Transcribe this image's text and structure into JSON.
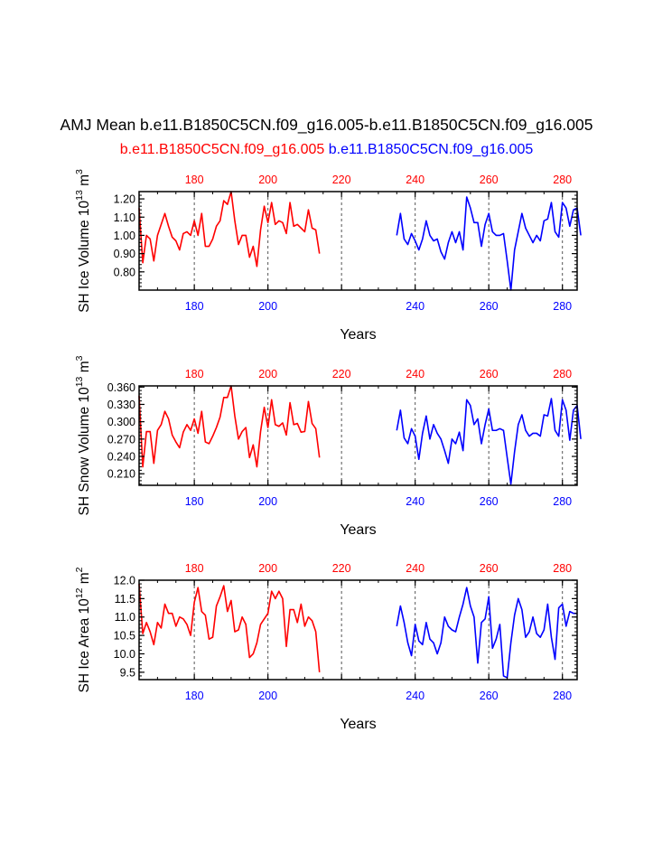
{
  "title": "AMJ Mean b.e11.B1850C5CN.f09_g16.005-b.e11.B1850C5CN.f09_g16.005",
  "case1_label": "b.e11.B1850C5CN.f09_g16.005",
  "case2_label": "b.e11.B1850C5CN.f09_g16.005",
  "colors": {
    "case1": "#ff0000",
    "case2": "#0000ff",
    "axes": "#000000",
    "refline": "#555555"
  },
  "chart_data": [
    {
      "type": "line",
      "ylabel": {
        "base": "SH Ice Volume 10",
        "exp": "13",
        "unit": " m",
        "unit_exp": "3"
      },
      "xlabel": "Years",
      "xlim": [
        165,
        284
      ],
      "ylim": [
        0.7,
        1.24
      ],
      "yticks": [
        0.8,
        0.9,
        1.0,
        1.1,
        1.2
      ],
      "ytick_labels": [
        "0.80",
        "0.90",
        "1.00",
        "1.10",
        "1.20"
      ],
      "xticks": [
        180,
        200,
        220,
        240,
        260,
        280
      ],
      "xtick_labels_bottom": [
        "180",
        "200",
        "240",
        "260",
        "280"
      ],
      "xtick_labels_bottom_values": [
        180,
        200,
        240,
        260,
        280
      ],
      "xtick_labels_top": [
        "180",
        "200",
        "220",
        "240",
        "260",
        "280"
      ],
      "reference_lines_x": [
        180,
        200,
        220,
        240,
        260,
        280
      ],
      "series": [
        {
          "color": "case1",
          "x_start": 165,
          "values": [
            1.15,
            0.85,
            1.0,
            0.98,
            0.86,
            1.0,
            1.06,
            1.12,
            1.05,
            0.99,
            0.97,
            0.92,
            1.01,
            1.02,
            1.0,
            1.08,
            1.0,
            1.12,
            0.94,
            0.94,
            0.98,
            1.05,
            1.08,
            1.19,
            1.17,
            1.24,
            1.08,
            0.95,
            1.0,
            1.0,
            0.88,
            0.94,
            0.83,
            1.03,
            1.16,
            1.07,
            1.18,
            1.06,
            1.08,
            1.07,
            1.01,
            1.18,
            1.05,
            1.06,
            1.04,
            1.02,
            1.14,
            1.04,
            1.03,
            0.9
          ]
        },
        {
          "color": "case2",
          "x_start": 235,
          "values": [
            1.0,
            1.12,
            0.98,
            0.95,
            1.01,
            0.97,
            0.92,
            0.98,
            1.08,
            1.0,
            0.97,
            0.98,
            0.91,
            0.87,
            0.96,
            1.02,
            0.96,
            1.02,
            0.92,
            1.21,
            1.15,
            1.07,
            1.07,
            0.94,
            1.06,
            1.12,
            1.02,
            1.0,
            1.0,
            1.01,
            0.86,
            0.7,
            0.92,
            1.02,
            1.12,
            1.04,
            1.0,
            0.96,
            1.0,
            0.97,
            1.08,
            1.09,
            1.18,
            1.02,
            0.99,
            1.18,
            1.15,
            1.05,
            1.14,
            1.15,
            1.0
          ]
        }
      ]
    },
    {
      "type": "line",
      "ylabel": {
        "base": "SH Snow Volume 10",
        "exp": "13",
        "unit": " m",
        "unit_exp": "3"
      },
      "xlabel": "Years",
      "xlim": [
        165,
        284
      ],
      "ylim": [
        0.19,
        0.362
      ],
      "yticks": [
        0.21,
        0.24,
        0.27,
        0.3,
        0.33,
        0.36
      ],
      "ytick_labels": [
        "0.210",
        "0.240",
        "0.270",
        "0.300",
        "0.330",
        "0.360"
      ],
      "xticks": [
        180,
        200,
        220,
        240,
        260,
        280
      ],
      "xtick_labels_bottom": [
        "180",
        "200",
        "240",
        "260",
        "280"
      ],
      "xtick_labels_bottom_values": [
        180,
        200,
        240,
        260,
        280
      ],
      "xtick_labels_top": [
        "180",
        "200",
        "220",
        "240",
        "260",
        "280"
      ],
      "reference_lines_x": [
        180,
        200,
        220,
        240,
        260,
        280
      ],
      "series": [
        {
          "color": "case1",
          "x_start": 165,
          "values": [
            0.345,
            0.222,
            0.283,
            0.283,
            0.228,
            0.285,
            0.295,
            0.318,
            0.305,
            0.277,
            0.265,
            0.255,
            0.282,
            0.295,
            0.285,
            0.305,
            0.28,
            0.318,
            0.265,
            0.262,
            0.275,
            0.29,
            0.308,
            0.342,
            0.342,
            0.362,
            0.31,
            0.27,
            0.283,
            0.29,
            0.238,
            0.26,
            0.222,
            0.283,
            0.325,
            0.29,
            0.338,
            0.295,
            0.292,
            0.298,
            0.277,
            0.333,
            0.295,
            0.297,
            0.282,
            0.283,
            0.335,
            0.297,
            0.288,
            0.238
          ]
        },
        {
          "color": "case2",
          "x_start": 235,
          "values": [
            0.285,
            0.32,
            0.272,
            0.262,
            0.288,
            0.275,
            0.235,
            0.28,
            0.31,
            0.27,
            0.295,
            0.28,
            0.27,
            0.25,
            0.228,
            0.27,
            0.262,
            0.282,
            0.25,
            0.338,
            0.328,
            0.295,
            0.305,
            0.262,
            0.295,
            0.322,
            0.285,
            0.285,
            0.288,
            0.285,
            0.238,
            0.192,
            0.248,
            0.295,
            0.312,
            0.285,
            0.275,
            0.28,
            0.28,
            0.275,
            0.312,
            0.31,
            0.34,
            0.285,
            0.275,
            0.338,
            0.32,
            0.268,
            0.32,
            0.328,
            0.27
          ]
        }
      ]
    },
    {
      "type": "line",
      "ylabel": {
        "base": "SH Ice Area 10",
        "exp": "12",
        "unit": " m",
        "unit_exp": "2"
      },
      "xlabel": "Years",
      "xlim": [
        165,
        284
      ],
      "ylim": [
        9.3,
        12.0
      ],
      "yticks": [
        9.5,
        10.0,
        10.5,
        11.0,
        11.5,
        12.0
      ],
      "ytick_labels": [
        "9.5",
        "10.0",
        "10.5",
        "11.0",
        "11.5",
        "12.0"
      ],
      "xticks": [
        180,
        200,
        220,
        240,
        260,
        280
      ],
      "xtick_labels_bottom": [
        "180",
        "200",
        "240",
        "260",
        "280"
      ],
      "xtick_labels_bottom_values": [
        180,
        200,
        240,
        260,
        280
      ],
      "xtick_labels_top": [
        "180",
        "200",
        "220",
        "240",
        "260",
        "280"
      ],
      "reference_lines_x": [
        180,
        200,
        220,
        240,
        260,
        280
      ],
      "series": [
        {
          "color": "case1",
          "x_start": 165,
          "values": [
            11.9,
            10.55,
            10.85,
            10.6,
            10.25,
            10.85,
            10.7,
            11.35,
            11.1,
            11.1,
            10.75,
            11.0,
            10.95,
            10.8,
            10.5,
            11.4,
            11.8,
            11.15,
            11.05,
            10.4,
            10.45,
            11.3,
            11.55,
            11.85,
            11.15,
            11.45,
            10.6,
            10.65,
            11.0,
            10.8,
            9.9,
            10.0,
            10.3,
            10.8,
            10.95,
            11.1,
            11.7,
            11.5,
            11.7,
            11.5,
            10.2,
            11.2,
            11.2,
            10.85,
            11.35,
            10.75,
            11.0,
            10.9,
            10.6,
            9.5
          ]
        },
        {
          "color": "case2",
          "x_start": 235,
          "values": [
            10.75,
            11.3,
            10.85,
            10.3,
            9.95,
            10.8,
            10.35,
            10.25,
            10.85,
            10.4,
            10.3,
            10.0,
            10.3,
            11.0,
            10.75,
            10.65,
            10.6,
            11.0,
            11.35,
            11.8,
            11.3,
            11.0,
            9.75,
            10.85,
            10.95,
            11.55,
            10.15,
            10.4,
            10.8,
            9.4,
            9.35,
            10.3,
            11.05,
            11.5,
            11.2,
            10.45,
            10.6,
            11.0,
            10.55,
            10.45,
            10.65,
            11.35,
            10.45,
            9.85,
            11.25,
            11.35,
            10.75,
            11.15,
            11.1,
            11.1
          ]
        }
      ]
    }
  ]
}
